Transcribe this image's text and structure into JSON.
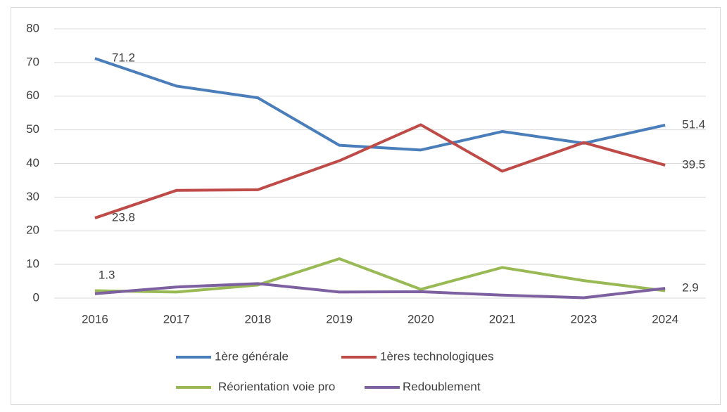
{
  "chart_data": {
    "type": "line",
    "categories": [
      "2016",
      "2017",
      "2018",
      "2019",
      "2020",
      "2021",
      "2023",
      "2024"
    ],
    "series": [
      {
        "name": "1ère générale",
        "color": "#4a7ebb",
        "values": [
          71.2,
          63,
          59.5,
          45.4,
          44,
          49.5,
          46,
          51.4
        ],
        "label_indices": [
          0,
          7
        ]
      },
      {
        "name": "1ères technologiques",
        "color": "#be4b48",
        "values": [
          23.8,
          32,
          32.2,
          40.8,
          51.5,
          37.7,
          46.2,
          39.5
        ],
        "label_indices": [
          0,
          7
        ]
      },
      {
        "name": "Réorientation voie pro",
        "color": "#98b954",
        "values": [
          2.2,
          1.8,
          3.9,
          11.7,
          2.6,
          9.1,
          5.2,
          2.2
        ],
        "label_indices": []
      },
      {
        "name": "Redoublement",
        "color": "#7d60a0",
        "values": [
          1.3,
          3.3,
          4.3,
          1.8,
          1.9,
          0.9,
          0.1,
          2.9
        ],
        "label_indices": [
          0,
          7
        ]
      }
    ],
    "ylim": [
      0,
      80
    ],
    "yticks": [
      0,
      10,
      20,
      30,
      40,
      50,
      60,
      70,
      80
    ],
    "grid": true,
    "legend": "bottom"
  }
}
